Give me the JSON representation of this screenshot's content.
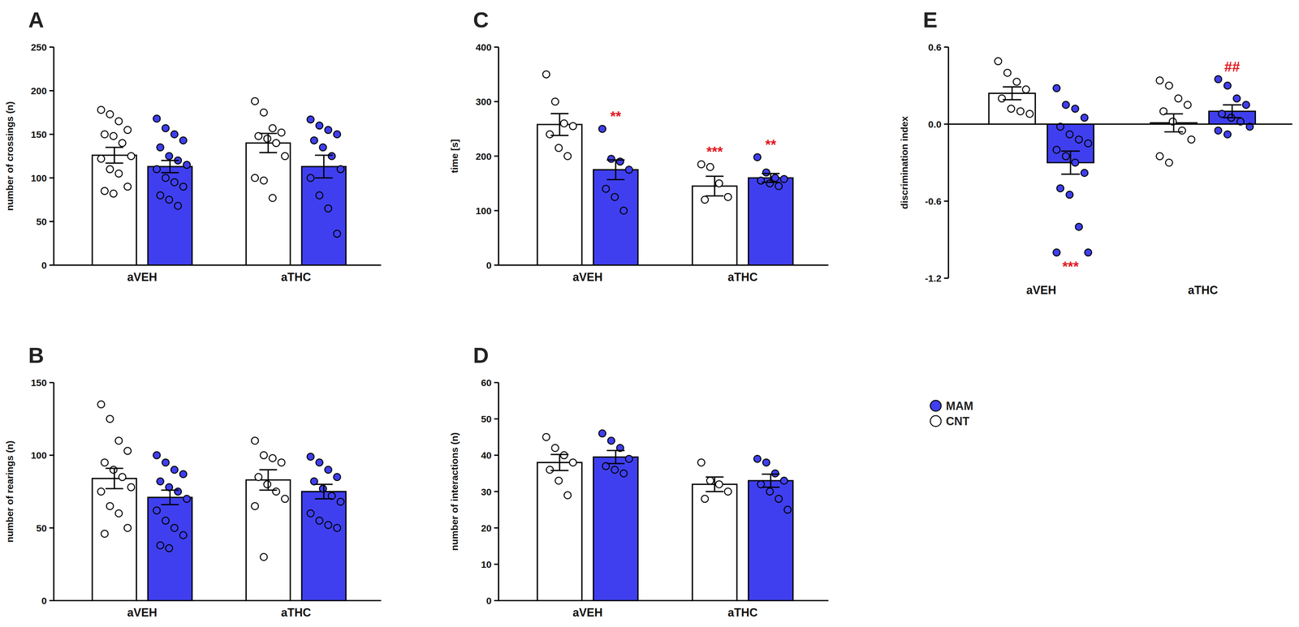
{
  "chart_data": [
    {
      "type": "bar",
      "title": "A",
      "y_label": "number of crossings (n)",
      "categories": [
        "aVEH",
        "aTHC"
      ],
      "ylim": [
        0,
        250
      ],
      "yticks": [
        0,
        50,
        100,
        150,
        200,
        250
      ],
      "series": [
        {
          "color": "#ffffff",
          "values": [
            126,
            140
          ],
          "errors": [
            9,
            11
          ],
          "annotations": [
            null,
            null
          ],
          "points": [
            [
              178,
              173,
              165,
              155,
              150,
              148,
              140,
              125,
              122,
              110,
              105,
              90,
              85,
              82
            ],
            [
              188,
              175,
              157,
              152,
              148,
              145,
              140,
              125,
              100,
              97,
              77
            ]
          ]
        },
        {
          "color": "#3f3ff0",
          "values": [
            113,
            113
          ],
          "errors": [
            7,
            13
          ],
          "annotations": [
            null,
            null
          ],
          "points": [
            [
              168,
              157,
              150,
              143,
              135,
              125,
              120,
              115,
              110,
              100,
              95,
              90,
              80,
              75,
              68
            ],
            [
              167,
              160,
              155,
              150,
              143,
              135,
              125,
              110,
              100,
              80,
              65,
              36
            ]
          ]
        }
      ]
    },
    {
      "type": "bar",
      "title": "B",
      "y_label": "number of rearings (n)",
      "categories": [
        "aVEH",
        "aTHC"
      ],
      "ylim": [
        0,
        150
      ],
      "yticks": [
        0,
        50,
        100,
        150
      ],
      "series": [
        {
          "color": "#ffffff",
          "values": [
            84,
            83
          ],
          "errors": [
            7,
            7
          ],
          "annotations": [
            null,
            null
          ],
          "points": [
            [
              135,
              125,
              110,
              103,
              95,
              90,
              85,
              78,
              75,
              65,
              60,
              50,
              46
            ],
            [
              110,
              100,
              98,
              95,
              85,
              80,
              75,
              70,
              65,
              30
            ]
          ]
        },
        {
          "color": "#3f3ff0",
          "values": [
            71,
            75
          ],
          "errors": [
            5,
            5
          ],
          "annotations": [
            null,
            null
          ],
          "points": [
            [
              100,
              95,
              90,
              87,
              82,
              78,
              75,
              70,
              62,
              55,
              50,
              45,
              38,
              36
            ],
            [
              99,
              95,
              90,
              85,
              82,
              77,
              72,
              68,
              60,
              55,
              52,
              50
            ]
          ]
        }
      ]
    },
    {
      "type": "bar",
      "title": "C",
      "y_label": "time [s]",
      "categories": [
        "aVEH",
        "aTHC"
      ],
      "ylim": [
        0,
        400
      ],
      "yticks": [
        0,
        100,
        200,
        300,
        400
      ],
      "series": [
        {
          "color": "#ffffff",
          "values": [
            258,
            145
          ],
          "errors": [
            20,
            18
          ],
          "annotations": [
            null,
            "***"
          ],
          "points": [
            [
              350,
              300,
              260,
              255,
              240,
              215,
              200
            ],
            [
              185,
              180,
              150,
              125,
              120
            ]
          ]
        },
        {
          "color": "#3f3ff0",
          "values": [
            175,
            160
          ],
          "errors": [
            18,
            8
          ],
          "annotations": [
            "**",
            "**"
          ],
          "points": [
            [
              250,
              195,
              190,
              175,
              140,
              125,
              100
            ],
            [
              198,
              170,
              160,
              158,
              155,
              150,
              145
            ]
          ]
        }
      ]
    },
    {
      "type": "bar",
      "title": "D",
      "y_label": "number of interactions (n)",
      "categories": [
        "aVEH",
        "aTHC"
      ],
      "ylim": [
        0,
        60
      ],
      "yticks": [
        0,
        10,
        20,
        30,
        40,
        50,
        60
      ],
      "series": [
        {
          "color": "#ffffff",
          "values": [
            38,
            32
          ],
          "errors": [
            2.2,
            2
          ],
          "annotations": [
            null,
            null
          ],
          "points": [
            [
              45,
              42,
              40,
              38,
              36,
              33,
              29
            ],
            [
              38,
              33,
              32,
              30,
              28
            ]
          ]
        },
        {
          "color": "#3f3ff0",
          "values": [
            39.5,
            33
          ],
          "errors": [
            1.8,
            1.8
          ],
          "annotations": [
            null,
            null
          ],
          "points": [
            [
              46,
              44,
              42,
              39,
              37,
              36,
              35
            ],
            [
              39,
              38,
              35,
              33,
              32,
              30,
              28,
              25
            ]
          ]
        }
      ]
    },
    {
      "type": "bar",
      "title": "E",
      "y_label": "discrimination index",
      "categories": [
        "aVEH",
        "aTHC"
      ],
      "ylim": [
        -1.2,
        0.6
      ],
      "yticks": [
        -1.2,
        -0.6,
        {
          "value": 0,
          "label": "0.0"
        },
        0.6
      ],
      "legend": "right",
      "series": [
        {
          "name": "CNT",
          "color": "#ffffff",
          "values": [
            0.24,
            0.01
          ],
          "errors": [
            0.05,
            0.07
          ],
          "annotations": [
            null,
            null
          ],
          "points": [
            [
              0.49,
              0.4,
              0.33,
              0.27,
              0.2,
              0.12,
              0.1,
              0.08
            ],
            [
              0.34,
              0.3,
              0.2,
              0.15,
              0.1,
              0.02,
              -0.05,
              -0.12,
              -0.25,
              -0.3
            ]
          ]
        },
        {
          "name": "MAM",
          "color": "#3f3ff0",
          "values": [
            -0.3,
            0.1
          ],
          "errors": [
            0.09,
            0.05
          ],
          "annotations": [
            "***",
            "##"
          ],
          "points": [
            [
              0.28,
              0.15,
              0.12,
              0.05,
              -0.02,
              -0.08,
              -0.12,
              -0.15,
              -0.2,
              -0.25,
              -0.3,
              -0.38,
              -0.5,
              -0.55,
              -0.8,
              -1.0,
              -1.0
            ],
            [
              0.35,
              0.3,
              0.2,
              0.15,
              0.08,
              0.05,
              0.02,
              -0.02,
              -0.05,
              -0.08
            ]
          ]
        }
      ]
    }
  ]
}
